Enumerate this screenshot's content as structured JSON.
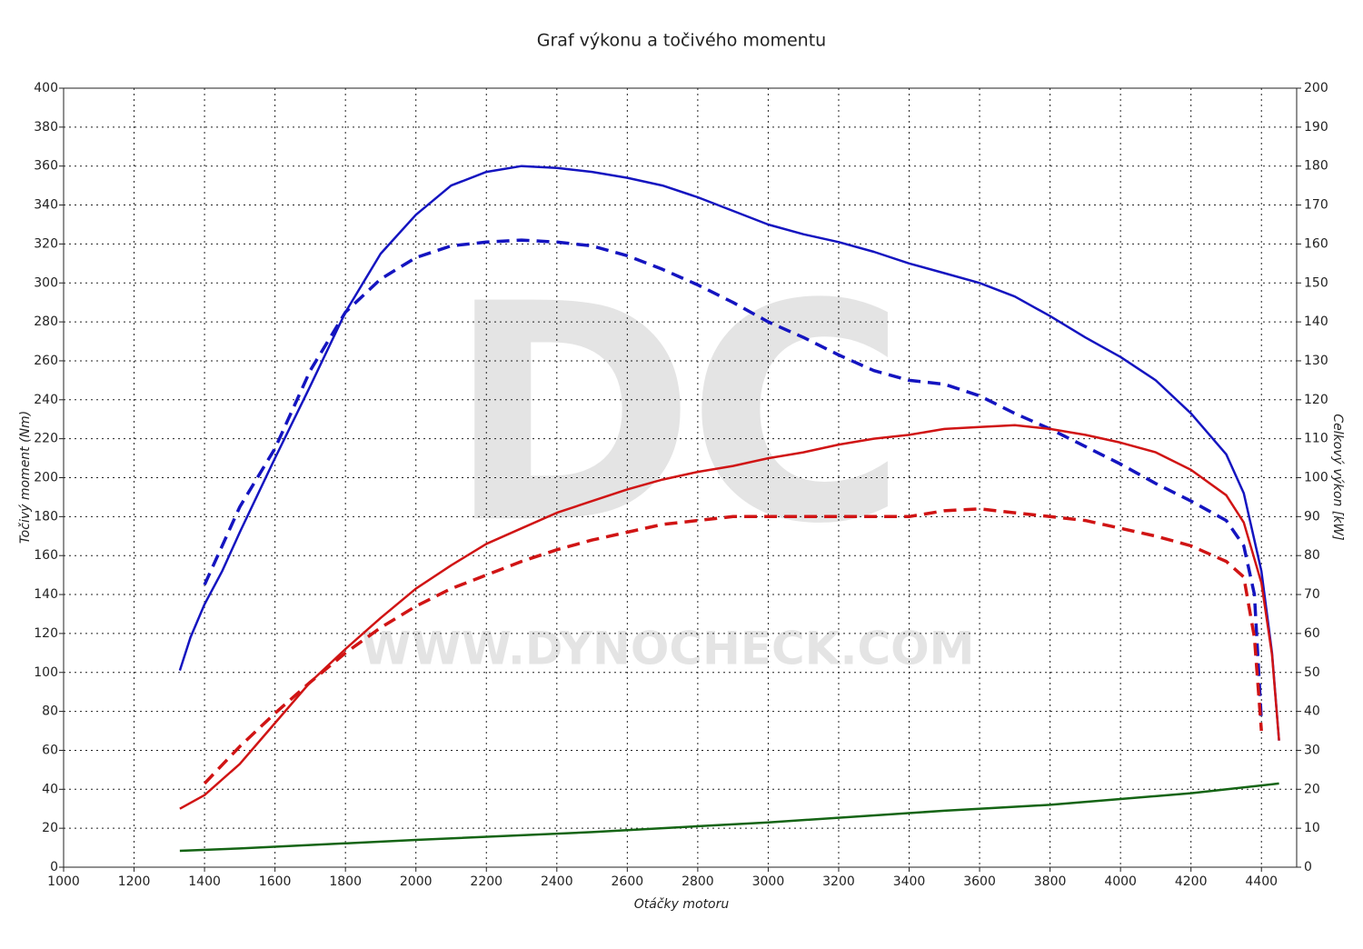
{
  "chart_data": {
    "type": "line",
    "title": "Graf výkonu a točivého momentu",
    "xlabel": "Otáčky motoru",
    "ylabel": "Točivý moment (Nm)",
    "y2label": "Celkový výkon [kW]",
    "watermark": {
      "logo": "DC",
      "url": "WWW.DYNOCHECK.COM"
    },
    "grid": true,
    "xlim": [
      1000,
      4500
    ],
    "xticks": [
      1000,
      1200,
      1400,
      1600,
      1800,
      2000,
      2200,
      2400,
      2600,
      2800,
      3000,
      3200,
      3400,
      3600,
      3800,
      4000,
      4200,
      4400
    ],
    "ylim": [
      0,
      400
    ],
    "yticks": [
      0,
      20,
      40,
      60,
      80,
      100,
      120,
      140,
      160,
      180,
      200,
      220,
      240,
      260,
      280,
      300,
      320,
      340,
      360,
      380,
      400
    ],
    "y2lim": [
      0,
      200
    ],
    "y2ticks": [
      0,
      10,
      20,
      30,
      40,
      50,
      60,
      70,
      80,
      90,
      100,
      110,
      120,
      130,
      140,
      150,
      160,
      170,
      180,
      190,
      200
    ],
    "series": [
      {
        "color": "#1414c0",
        "dashed": false,
        "axis": "y",
        "x": [
          1330,
          1360,
          1400,
          1450,
          1500,
          1600,
          1700,
          1800,
          1900,
          2000,
          2100,
          2200,
          2300,
          2400,
          2500,
          2600,
          2700,
          2800,
          2900,
          3000,
          3100,
          3200,
          3300,
          3400,
          3500,
          3600,
          3700,
          3800,
          3900,
          4000,
          4100,
          4200,
          4300,
          4350,
          4400,
          4430,
          4450
        ],
        "values": [
          101,
          118,
          135,
          152,
          172,
          210,
          247,
          285,
          315,
          335,
          350,
          357,
          360,
          359,
          357,
          354,
          350,
          344,
          337,
          330,
          325,
          321,
          316,
          310,
          305,
          300,
          293,
          283,
          272,
          262,
          250,
          233,
          212,
          192,
          152,
          110,
          65
        ]
      },
      {
        "color": "#1414c0",
        "dashed": true,
        "axis": "y",
        "x": [
          1400,
          1450,
          1500,
          1600,
          1700,
          1800,
          1900,
          2000,
          2100,
          2200,
          2300,
          2400,
          2500,
          2600,
          2700,
          2800,
          2900,
          3000,
          3100,
          3200,
          3300,
          3400,
          3500,
          3600,
          3700,
          3800,
          3900,
          4000,
          4100,
          4200,
          4300,
          4350,
          4380,
          4400
        ],
        "values": [
          145,
          165,
          185,
          215,
          255,
          285,
          302,
          313,
          319,
          321,
          322,
          321,
          319,
          314,
          307,
          299,
          290,
          280,
          272,
          263,
          255,
          250,
          248,
          242,
          233,
          225,
          216,
          207,
          197,
          188,
          178,
          165,
          140,
          75
        ]
      },
      {
        "color": "#d01414",
        "dashed": false,
        "axis": "y2",
        "x": [
          1330,
          1400,
          1500,
          1600,
          1700,
          1800,
          1900,
          2000,
          2100,
          2200,
          2300,
          2400,
          2500,
          2600,
          2700,
          2800,
          2900,
          3000,
          3100,
          3200,
          3300,
          3400,
          3500,
          3600,
          3700,
          3800,
          3900,
          4000,
          4100,
          4200,
          4300,
          4350,
          4400,
          4430,
          4450
        ],
        "values": [
          15,
          18.5,
          26.5,
          37,
          47.5,
          56,
          64,
          71.5,
          77.5,
          83,
          87,
          91,
          94,
          97,
          99.5,
          101.5,
          103,
          105,
          106.5,
          108.5,
          110,
          111,
          112.5,
          113,
          113.5,
          112.5,
          111,
          109,
          106.5,
          102,
          95.5,
          88.5,
          73,
          54.5,
          32.5
        ]
      },
      {
        "color": "#d01414",
        "dashed": true,
        "axis": "y2",
        "x": [
          1400,
          1500,
          1600,
          1700,
          1800,
          1900,
          2000,
          2100,
          2200,
          2300,
          2400,
          2500,
          2600,
          2700,
          2800,
          2900,
          3000,
          3100,
          3200,
          3300,
          3400,
          3500,
          3600,
          3700,
          3800,
          3900,
          4000,
          4100,
          4200,
          4300,
          4350,
          4380,
          4400
        ],
        "values": [
          21.5,
          31,
          39.5,
          47.5,
          55,
          61.5,
          67,
          71.5,
          75,
          78.5,
          81.5,
          84,
          86,
          88,
          89,
          90,
          90,
          90,
          90,
          90,
          90,
          91.5,
          92,
          91,
          90,
          89,
          87,
          85,
          82.5,
          78.5,
          74.5,
          59,
          35
        ]
      },
      {
        "color": "#146414",
        "dashed": false,
        "axis": "y2",
        "x": [
          1330,
          1500,
          2000,
          2500,
          3000,
          3500,
          3800,
          4000,
          4200,
          4450
        ],
        "values": [
          4.2,
          4.8,
          7,
          9,
          11.5,
          14.5,
          16,
          17.5,
          19,
          21.5
        ]
      }
    ]
  }
}
